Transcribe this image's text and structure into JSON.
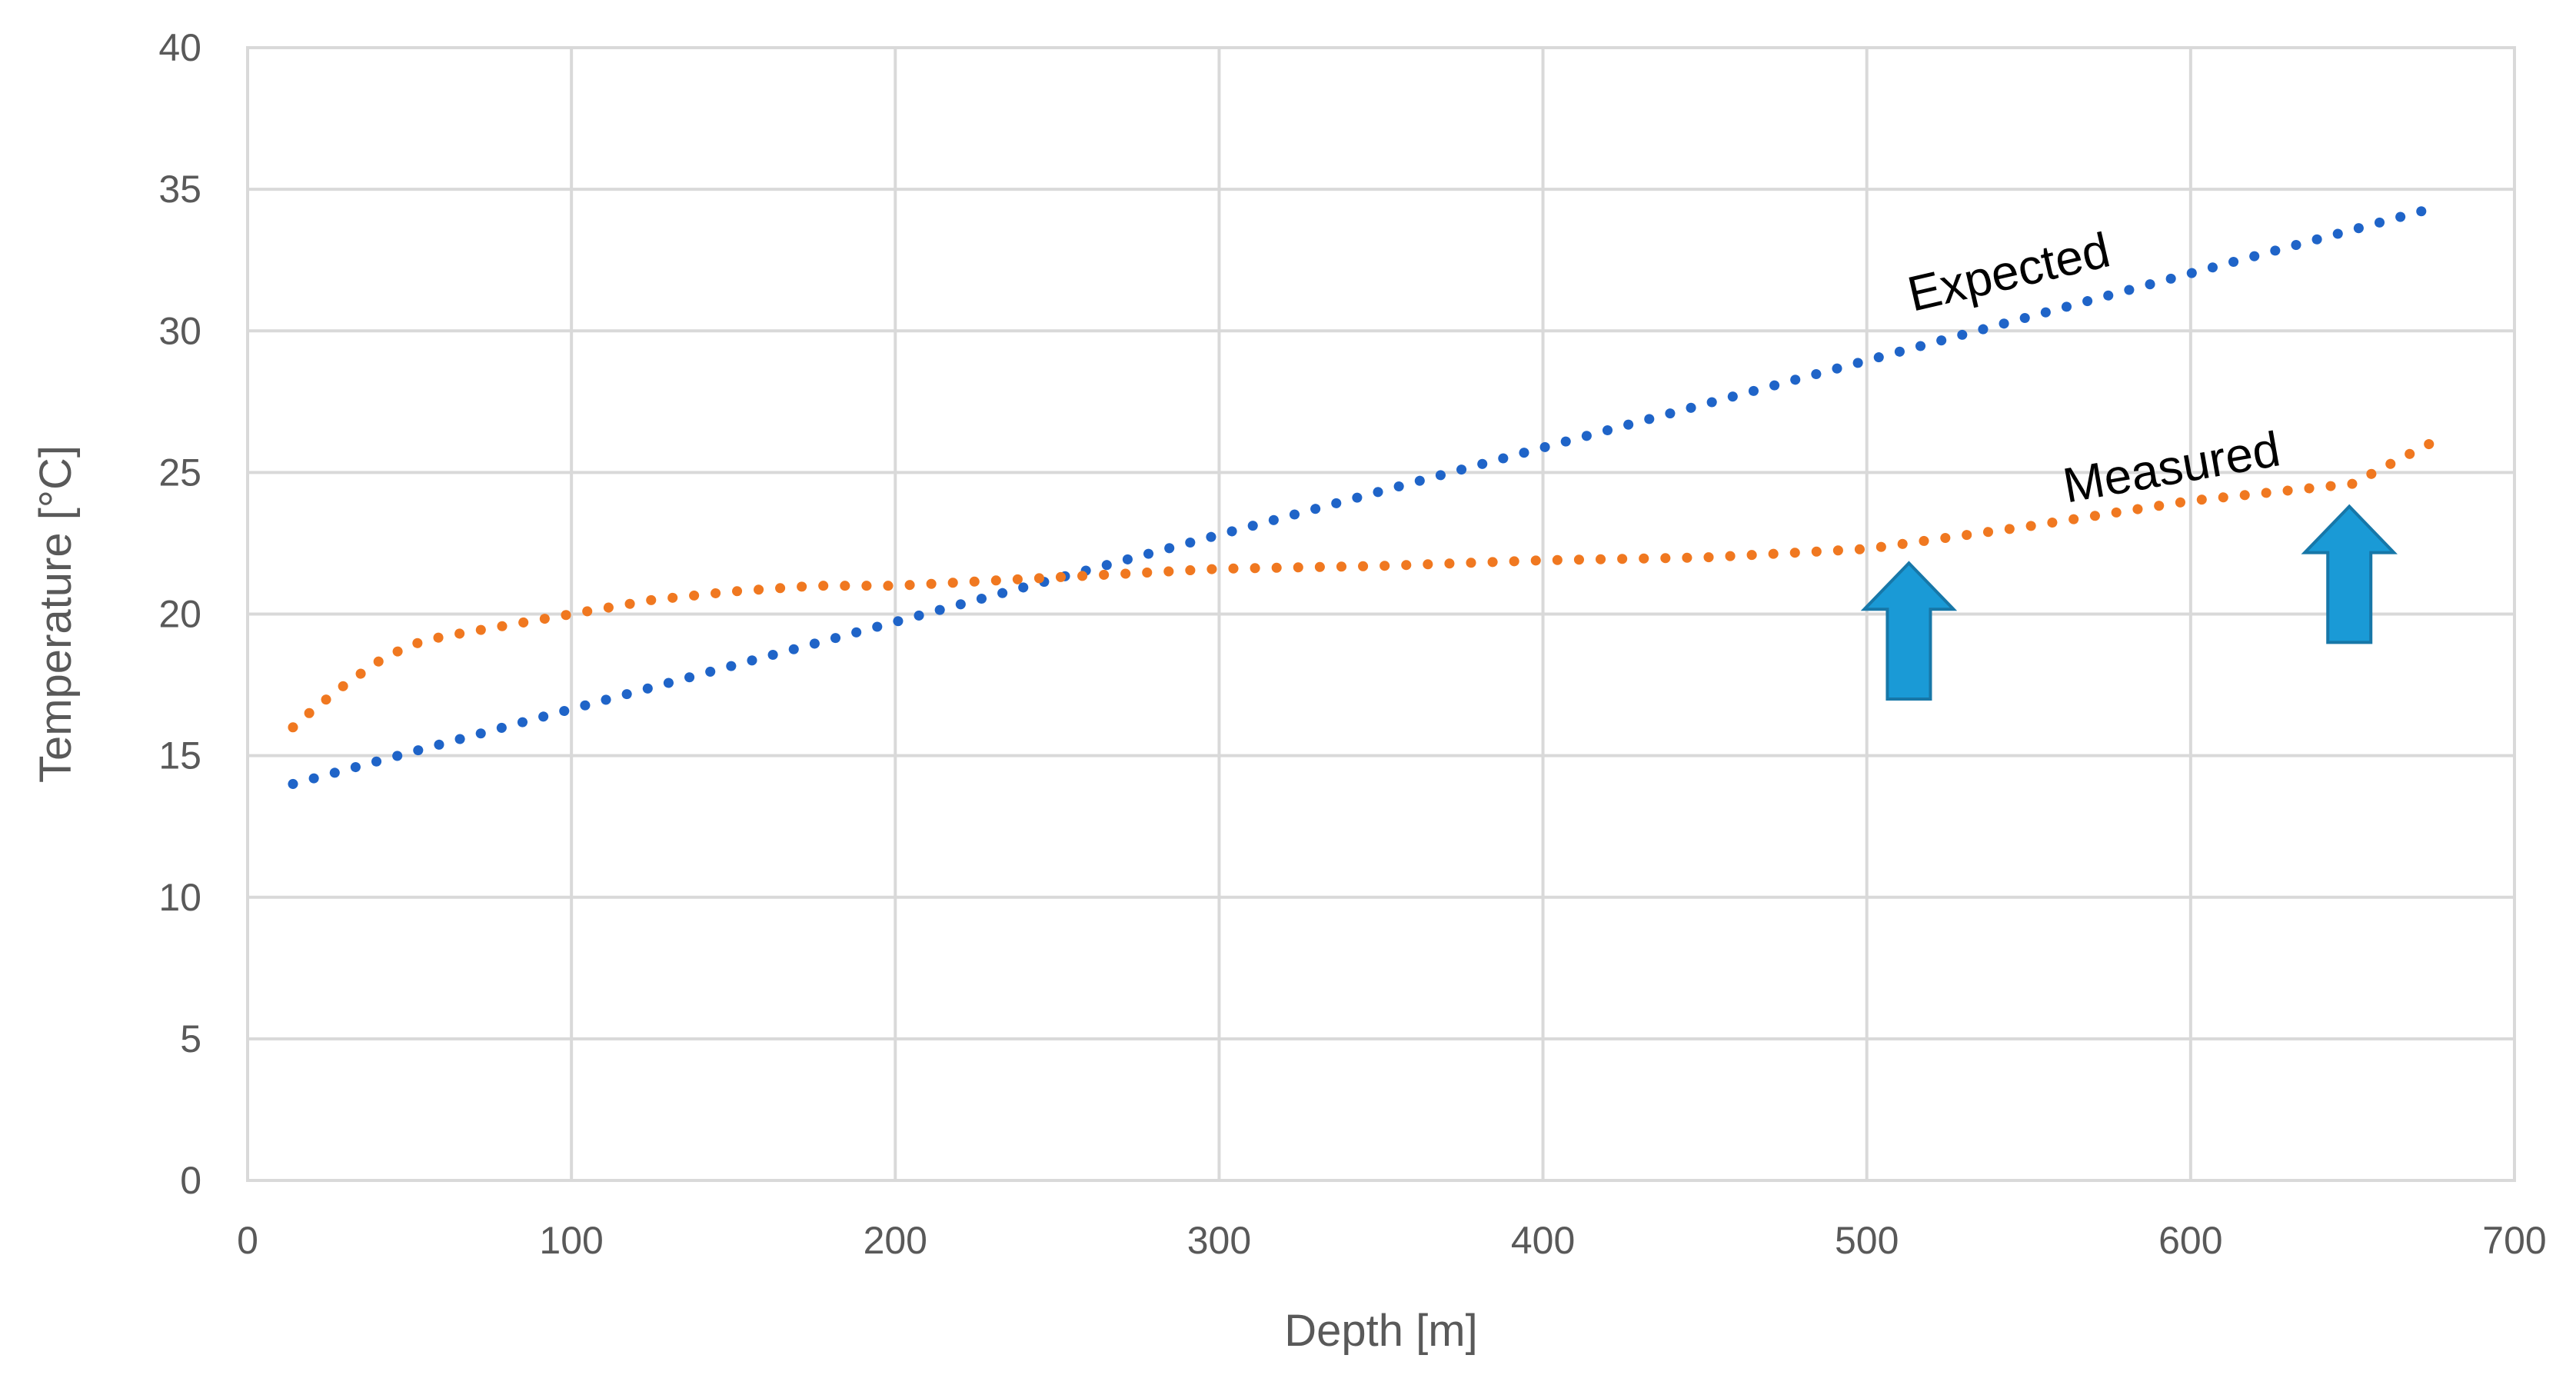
{
  "chart_data": {
    "type": "line",
    "title": "",
    "xlabel": "Depth [m]",
    "ylabel": "Temperature [°C]",
    "xlim": [
      0,
      700
    ],
    "ylim": [
      0,
      40
    ],
    "xticks": [
      0,
      100,
      200,
      300,
      400,
      500,
      600,
      700
    ],
    "yticks": [
      0,
      5,
      10,
      15,
      20,
      25,
      30,
      35,
      40
    ],
    "xtick_labels": [
      "0",
      "100",
      "200",
      "300",
      "400",
      "500",
      "600",
      "700"
    ],
    "ytick_labels": [
      "0",
      "5",
      "10",
      "15",
      "20",
      "25",
      "30",
      "35",
      "40"
    ],
    "grid": true,
    "legend": "none",
    "series": [
      {
        "name": "Expected",
        "color": "#1f64c8",
        "style": "dotted",
        "x": [
          14,
          677
        ],
        "y": [
          14.0,
          34.4
        ]
      },
      {
        "name": "Measured",
        "color": "#f07820",
        "style": "dotted",
        "x": [
          14,
          20,
          30,
          40,
          50,
          60,
          75,
          100,
          125,
          150,
          175,
          200,
          250,
          300,
          350,
          400,
          450,
          500,
          550,
          600,
          650,
          665,
          677
        ],
        "y": [
          16.0,
          16.6,
          17.5,
          18.3,
          18.9,
          19.2,
          19.5,
          20.0,
          20.5,
          20.8,
          21.0,
          21.0,
          21.3,
          21.6,
          21.7,
          21.9,
          22.0,
          22.3,
          23.1,
          24.0,
          24.6,
          25.5,
          26.2
        ]
      }
    ],
    "annotations": [
      {
        "text": "Expected",
        "x": 545,
        "y": 31.5,
        "rotation": -13
      },
      {
        "text": "Measured",
        "x": 595,
        "y": 24.6,
        "rotation": -10
      }
    ],
    "arrows": [
      {
        "name": "arrow-1",
        "x": 513,
        "y_base": 17.0,
        "y_tip": 21.8,
        "color": "#1a9ad6"
      },
      {
        "name": "arrow-2",
        "x": 649,
        "y_base": 19.0,
        "y_tip": 23.8,
        "color": "#1a9ad6"
      }
    ]
  }
}
